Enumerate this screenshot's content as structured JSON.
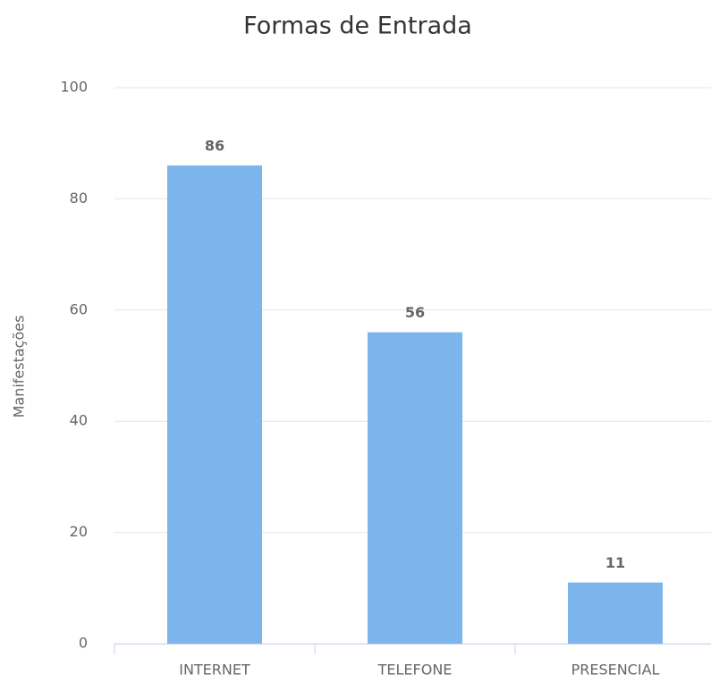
{
  "chart_data": {
    "type": "bar",
    "title": "Formas de Entrada",
    "y_label": "Manifestações",
    "categories": [
      "INTERNET",
      "TELEFONE",
      "PRESENCIAL"
    ],
    "values": [
      86,
      56,
      11
    ],
    "color": "#7cb5ec",
    "ylim": [
      0,
      100
    ],
    "yticks": [
      0,
      20,
      40,
      60,
      80,
      100
    ],
    "grid": true
  }
}
